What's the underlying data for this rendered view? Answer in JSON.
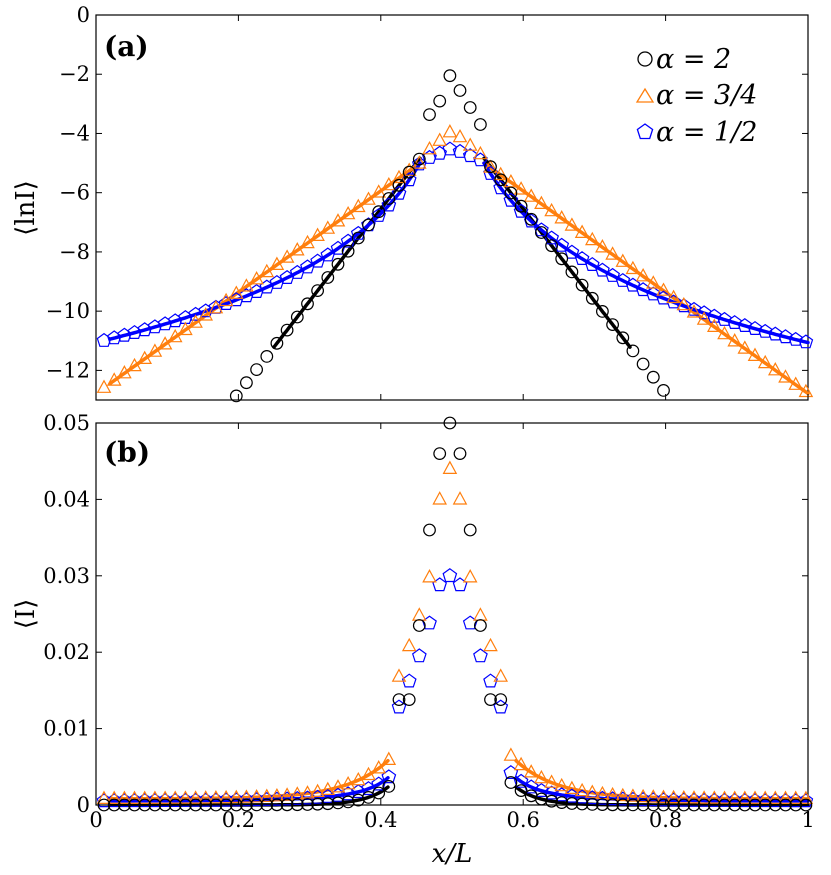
{
  "colors": {
    "a2": "#000000",
    "a34": "#ff7f0e",
    "a12": "#0000ff",
    "frame": "#000000"
  },
  "chart_data": [
    {
      "type": "scatter",
      "panel_label": "(a)",
      "ylabel": "⟨lnI⟩",
      "xlabel": "",
      "xlim": [
        0,
        1
      ],
      "ylim": [
        -13,
        0
      ],
      "yticks": [
        0,
        -2,
        -4,
        -6,
        -8,
        -10,
        -12
      ],
      "ytick_labels": [
        "0",
        "−2",
        "−4",
        "−6",
        "−8",
        "−10",
        "−12"
      ],
      "xticks": [
        0,
        0.2,
        0.4,
        0.6,
        0.8,
        1
      ],
      "legend_position": "top-right",
      "legend": [
        "α = 2",
        "α = 3/4",
        "α = 1/2"
      ],
      "series": [
        {
          "name": "α = 2",
          "color_key": "a2",
          "marker": "circle",
          "fit": "a2"
        },
        {
          "name": "α = 3/4",
          "color_key": "a34",
          "marker": "triangle",
          "fit": "a34"
        },
        {
          "name": "α = 1/2",
          "color_key": "a12",
          "marker": "pentagon",
          "fit": "a12"
        }
      ]
    },
    {
      "type": "scatter",
      "panel_label": "(b)",
      "ylabel": "⟨I⟩",
      "xlabel": "x/L",
      "xlim": [
        0,
        1
      ],
      "ylim": [
        0,
        0.05
      ],
      "yticks": [
        0,
        0.01,
        0.02,
        0.03,
        0.04,
        0.05
      ],
      "ytick_labels": [
        "0",
        "0.01",
        "0.02",
        "0.03",
        "0.04",
        "0.05"
      ],
      "xticks": [
        0,
        0.2,
        0.4,
        0.6,
        0.8,
        1
      ],
      "xtick_labels": [
        "0",
        "0.2",
        "0.4",
        "0.6",
        "0.8",
        "1"
      ],
      "series": [
        {
          "name": "α = 2",
          "color_key": "a2",
          "marker": "circle"
        },
        {
          "name": "α = 3/4",
          "color_key": "a34",
          "marker": "triangle"
        },
        {
          "name": "α = 1/2",
          "color_key": "a12",
          "marker": "pentagon"
        }
      ]
    }
  ]
}
